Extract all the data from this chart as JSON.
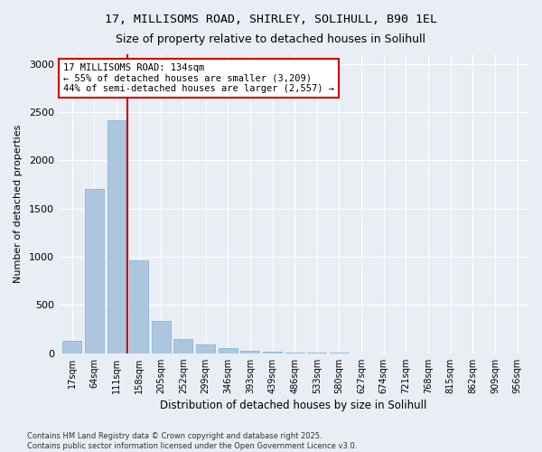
{
  "title_line1": "17, MILLISOMS ROAD, SHIRLEY, SOLIHULL, B90 1EL",
  "title_line2": "Size of property relative to detached houses in Solihull",
  "xlabel": "Distribution of detached houses by size in Solihull",
  "ylabel": "Number of detached properties",
  "bins": [
    "17sqm",
    "64sqm",
    "111sqm",
    "158sqm",
    "205sqm",
    "252sqm",
    "299sqm",
    "346sqm",
    "393sqm",
    "439sqm",
    "486sqm",
    "533sqm",
    "580sqm",
    "627sqm",
    "674sqm",
    "721sqm",
    "768sqm",
    "815sqm",
    "862sqm",
    "909sqm",
    "956sqm"
  ],
  "values": [
    130,
    1700,
    2420,
    960,
    330,
    150,
    95,
    55,
    25,
    15,
    5,
    3,
    2,
    0,
    0,
    0,
    0,
    0,
    0,
    0,
    0
  ],
  "bar_color": "#adc6e0",
  "bar_edge_color": "#7aafd4",
  "vline_color": "#cc0000",
  "vline_x": 2.5,
  "annotation_text": "17 MILLISOMS ROAD: 134sqm\n← 55% of detached houses are smaller (3,209)\n44% of semi-detached houses are larger (2,557) →",
  "annotation_box_color": "#ffffff",
  "annotation_box_edge": "#cc0000",
  "ylim": [
    0,
    3100
  ],
  "yticks": [
    0,
    500,
    1000,
    1500,
    2000,
    2500,
    3000
  ],
  "footnote": "Contains HM Land Registry data © Crown copyright and database right 2025.\nContains public sector information licensed under the Open Government Licence v3.0.",
  "background_color": "#e8eef4",
  "plot_bg_color": "#e8eef4"
}
